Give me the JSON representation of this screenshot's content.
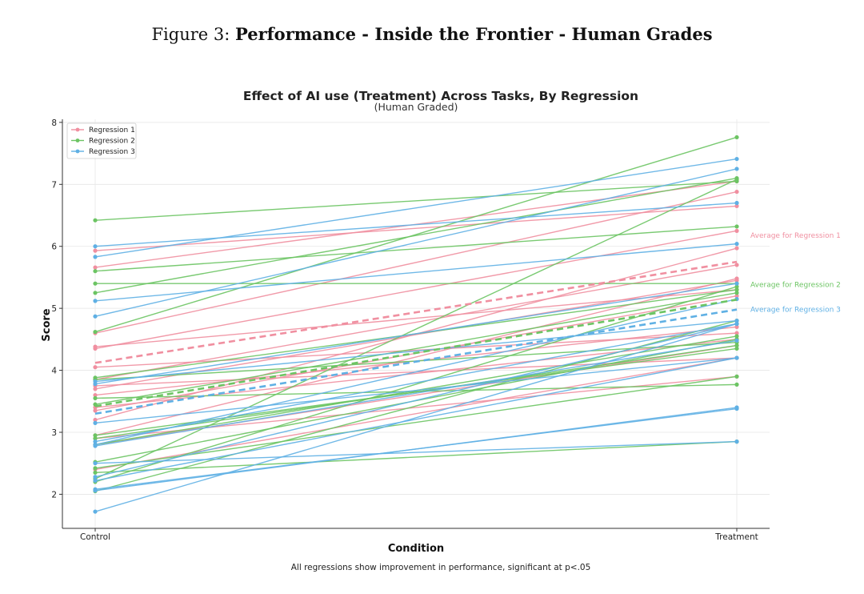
{
  "caption": {
    "prefix": "Figure 3:",
    "title": "Performance - Inside the Frontier - Human Grades"
  },
  "chart_data": {
    "type": "line",
    "title": "Effect of AI use (Treatment) Across Tasks, By Regression",
    "subtitle": "(Human Graded)",
    "xlabel": "Condition",
    "ylabel": "Score",
    "categories": [
      "Control",
      "Treatment"
    ],
    "ylim": [
      1.45,
      8.05
    ],
    "yticks": [
      2,
      3,
      4,
      5,
      6,
      7,
      8
    ],
    "grid": true,
    "legend_position": "top-left",
    "footnote": "All regressions show improvement in performance, significant at p<.05",
    "series": [
      {
        "name": "Regression 1",
        "color": "#f08fa0",
        "lines": [
          [
            5.93,
            6.65
          ],
          [
            5.66,
            7.05
          ],
          [
            4.6,
            6.88
          ],
          [
            4.38,
            5.3
          ],
          [
            3.85,
            5.7
          ],
          [
            3.75,
            4.2
          ],
          [
            3.7,
            5.45
          ],
          [
            3.6,
            4.7
          ],
          [
            3.4,
            4.5
          ],
          [
            3.35,
            5.2
          ],
          [
            3.2,
            5.97
          ],
          [
            2.95,
            5.48
          ],
          [
            2.8,
            4.4
          ],
          [
            2.4,
            4.2
          ],
          [
            4.05,
            4.6
          ],
          [
            4.35,
            6.25
          ],
          [
            2.9,
            3.9
          ]
        ],
        "average": [
          4.12,
          5.75
        ],
        "average_label": "Average for Regression 1"
      },
      {
        "name": "Regression 2",
        "color": "#6cc463",
        "lines": [
          [
            6.42,
            7.05
          ],
          [
            5.6,
            6.32
          ],
          [
            5.4,
            5.4
          ],
          [
            5.25,
            7.1
          ],
          [
            4.62,
            7.76
          ],
          [
            3.88,
            5.3
          ],
          [
            3.85,
            4.45
          ],
          [
            3.55,
            3.77
          ],
          [
            2.95,
            4.35
          ],
          [
            2.9,
            4.4
          ],
          [
            2.8,
            4.55
          ],
          [
            2.52,
            4.5
          ],
          [
            2.42,
            3.9
          ],
          [
            2.35,
            2.85
          ],
          [
            2.25,
            7.08
          ],
          [
            2.2,
            5.35
          ],
          [
            2.05,
            4.8
          ],
          [
            3.45,
            5.25
          ]
        ],
        "average": [
          3.42,
          5.14
        ],
        "average_label": "Average for Regression 2"
      },
      {
        "name": "Regression 3",
        "color": "#5fb0e4",
        "lines": [
          [
            6.0,
            6.7
          ],
          [
            5.83,
            7.41
          ],
          [
            5.12,
            6.04
          ],
          [
            4.87,
            7.25
          ],
          [
            3.82,
            4.8
          ],
          [
            3.78,
            5.4
          ],
          [
            3.15,
            4.2
          ],
          [
            2.85,
            4.75
          ],
          [
            2.8,
            5.15
          ],
          [
            2.78,
            4.48
          ],
          [
            2.5,
            2.85
          ],
          [
            2.28,
            4.75
          ],
          [
            2.22,
            4.2
          ],
          [
            2.08,
            3.38
          ],
          [
            2.06,
            3.4
          ],
          [
            1.72,
            4.75
          ]
        ],
        "average": [
          3.3,
          4.98
        ],
        "average_label": "Average for Regression 3"
      }
    ]
  }
}
